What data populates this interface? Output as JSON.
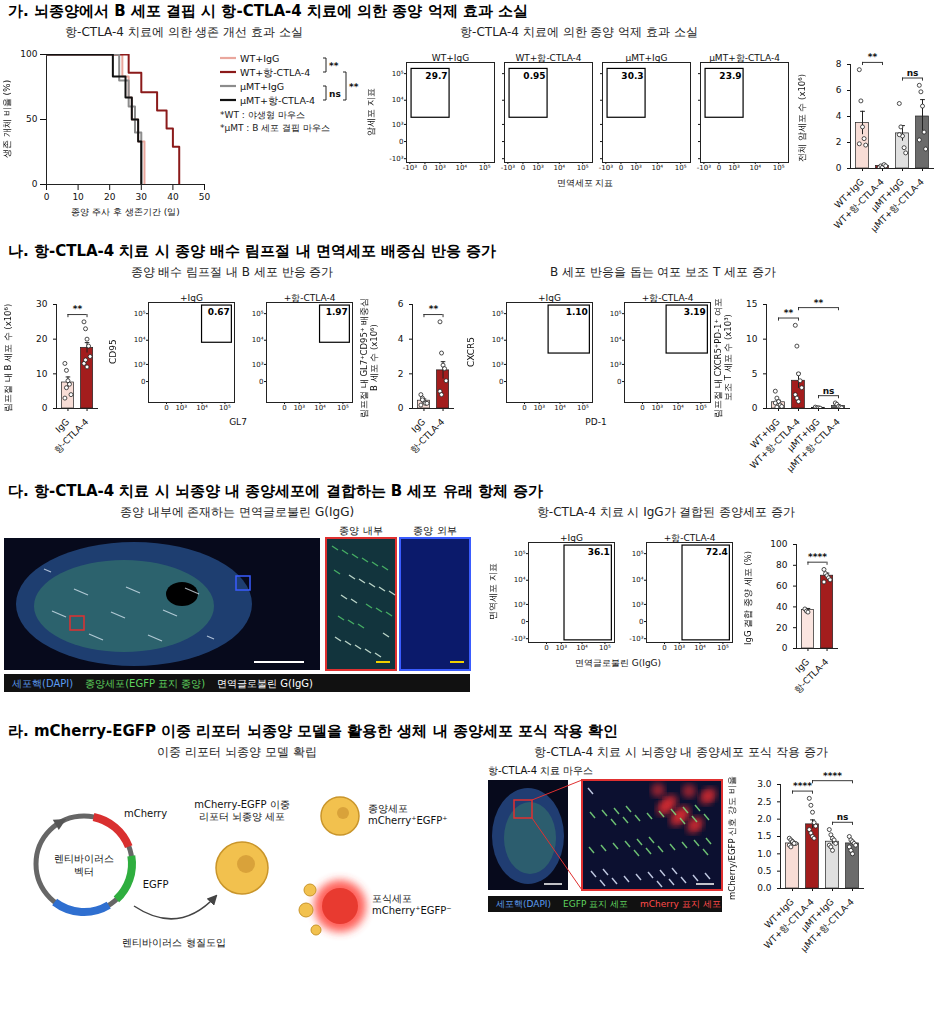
{
  "sections": [
    {
      "heading": "가. 뇌종양에서 B 세포 결핍 시 항-CTLA-4 치료에 의한 종양 억제 효과 소실",
      "subtitles": [
        "항-CTLA-4 치료에 의한 생존 개선 효과 소실",
        "항-CTLA-4 치료에 의한 종양 억제 효과 소실"
      ]
    },
    {
      "heading": "나. 항-CTLA-4 치료 시 종양 배수 림프절 내 면역세포 배중심 반응 증가",
      "subtitles": [
        "종양 배수 림프절 내 B 세포 반응 증가",
        "B 세포 반응을 돕는 여포 보조 T 세포 증가"
      ]
    },
    {
      "heading": "다. 항-CTLA-4 치료 시 뇌종양 내 종양세포에 결합하는 B 세포 유래 항체 증가",
      "subtitles": [
        "종양 내부에 존재하는 면역글로불린 G(IgG)",
        "항-CTLA-4 치료 시 IgG가 결합된 종양세포 증가"
      ]
    },
    {
      "heading": "라. mCherry-EGFP 이중 리포터 뇌종양 모델을 활용한 생체 내 종양세포 포식 작용 확인",
      "subtitles": [
        "이중 리포터 뇌종양 모델 확립",
        "항-CTLA-4 치료 시 뇌종양 내 종양세포 포식 작용 증가"
      ]
    }
  ],
  "chart_data": [
    {
      "type": "step",
      "xlabel": "종양 주사 후 생존기간 (일)",
      "ylabel": "생존 개체 비율 (%)",
      "xlim": [
        0,
        50
      ],
      "xticks": [
        0,
        10,
        20,
        30,
        40,
        50
      ],
      "ylim": [
        0,
        100
      ],
      "yticks": [
        0,
        50,
        100
      ],
      "legend": "right",
      "series": [
        {
          "name": "WT+IgG",
          "color": "#eaa79d",
          "x": [
            0,
            24,
            26,
            27,
            29,
            31
          ],
          "values": [
            100,
            83,
            67,
            50,
            33,
            0
          ]
        },
        {
          "name": "WT+항-CTLA-4",
          "color": "#8b1a1a",
          "x": [
            0,
            26,
            30,
            35,
            38,
            40,
            42
          ],
          "values": [
            100,
            86,
            71,
            57,
            43,
            29,
            0
          ]
        },
        {
          "name": "μMT+IgG",
          "color": "#8c8c8c",
          "x": [
            0,
            23,
            26,
            28,
            30
          ],
          "values": [
            100,
            80,
            60,
            40,
            0
          ]
        },
        {
          "name": "μMT+항-CTLA-4",
          "color": "#111111",
          "x": [
            0,
            21,
            25,
            27,
            29,
            30
          ],
          "values": [
            100,
            83,
            67,
            50,
            33,
            0
          ]
        }
      ],
      "comparisons": [
        {
          "from": 0,
          "to": 1,
          "label": "**"
        },
        {
          "from": 1,
          "to": 3,
          "label": "**"
        },
        {
          "from": 2,
          "to": 3,
          "label": "ns"
        }
      ],
      "notes": [
        "*WT : 야생형 마우스",
        "*μMT : B 세포 결핍 마우스"
      ]
    },
    {
      "type": "flow",
      "xlabel": "면역세포 지표",
      "ylabel": "암세포 지표",
      "log": true,
      "categories": [
        "WT+IgG",
        "WT+항-CTLA-4",
        "μMT+IgG",
        "μMT+항-CTLA-4"
      ],
      "values": [
        29.7,
        0.95,
        30.3,
        23.9
      ],
      "gate": {
        "x": [
          -800,
          3000
        ],
        "y": [
          2000,
          150000
        ]
      },
      "xlim": [
        -1500,
        260000
      ],
      "ylim": [
        -1500,
        260000
      ],
      "xticks": [
        {
          "value": -1000,
          "label": "-10³"
        },
        0,
        {
          "value": 1000,
          "label": "10³"
        },
        {
          "value": 10000,
          "label": "10⁴"
        },
        {
          "value": 100000,
          "label": "10⁵"
        }
      ],
      "yticks": [
        {
          "value": -1000,
          "label": "-10³"
        },
        0,
        {
          "value": 1000,
          "label": "10³"
        },
        {
          "value": 10000,
          "label": "10⁴"
        },
        {
          "value": 100000,
          "label": "10⁵"
        }
      ]
    },
    {
      "type": "bar",
      "ylabel": "전체 암세포 수 (x10⁶)",
      "categories": [
        "WT+IgG",
        "WT+항-CTLA-4",
        "μMT+IgG",
        "μMT+항-CTLA-4"
      ],
      "values": [
        3.5,
        0.2,
        2.7,
        4.0
      ],
      "error": [
        0.9,
        0.1,
        0.6,
        1.3
      ],
      "points": [
        [
          7.6,
          5.2,
          3.2,
          2.3,
          1.8,
          1.9
        ],
        [
          0.1,
          0.2,
          0.1,
          0.3,
          0.2
        ],
        [
          5.0,
          3.2,
          2.5,
          1.6,
          1.2,
          2.6
        ],
        [
          6.4,
          5.9,
          4.8,
          2.8,
          1.5,
          2.2
        ]
      ],
      "colors": [
        "#f8ddd6",
        "#a31d1d",
        "#e0e0e0",
        "#6b6b6b"
      ],
      "ylim": [
        0,
        8
      ],
      "yticks": [
        0,
        2,
        4,
        6,
        8
      ],
      "comparisons": [
        {
          "from": 0,
          "to": 1,
          "label": "**"
        },
        {
          "from": 2,
          "to": 3,
          "label": "ns"
        }
      ]
    },
    {
      "type": "bar",
      "ylabel": "림프절 내 B 세포 수 (x10⁶)",
      "categories": [
        "IgG",
        "항-CTLA-4"
      ],
      "values": [
        7.5,
        17.5
      ],
      "error": [
        1.6,
        1.5
      ],
      "points": [
        [
          13,
          11,
          8,
          7,
          4,
          3,
          6
        ],
        [
          25,
          23,
          20,
          18,
          15,
          13,
          14,
          12
        ]
      ],
      "colors": [
        "#f8ddd6",
        "#a31d1d"
      ],
      "ylim": [
        0,
        30
      ],
      "yticks": [
        0,
        10,
        20,
        30
      ],
      "comparisons": [
        {
          "from": 0,
          "to": 1,
          "label": "**"
        }
      ]
    },
    {
      "type": "flow",
      "xlabel": "GL7",
      "ylabel": "CD95",
      "log": true,
      "categories": [
        "+IgG",
        "+항-CTLA-4"
      ],
      "values": [
        0.67,
        1.97
      ],
      "gate": {
        "x": [
          10000,
          200000
        ],
        "y": [
          8000,
          200000
        ]
      },
      "xlim": [
        -1500,
        260000
      ],
      "ylim": [
        -1500,
        260000
      ],
      "xticks": [
        0,
        {
          "value": 1000,
          "label": "10³"
        },
        {
          "value": 10000,
          "label": "10⁴"
        },
        {
          "value": 100000,
          "label": "10⁵"
        }
      ],
      "yticks": [
        0,
        {
          "value": 1000,
          "label": "10³"
        },
        {
          "value": 10000,
          "label": "10⁴"
        },
        {
          "value": 100000,
          "label": "10⁵"
        }
      ]
    },
    {
      "type": "bar",
      "ylabel": "림프절 내 GL7⁺CD95⁺ 배중심 B 세포 수 (x10⁶)",
      "categories": [
        "IgG",
        "항-CTLA-4"
      ],
      "values": [
        0.45,
        2.2
      ],
      "error": [
        0.1,
        0.5
      ],
      "points": [
        [
          0.8,
          0.6,
          0.4,
          0.3,
          0.3,
          0.2,
          0.5
        ],
        [
          5.0,
          3.2,
          2.5,
          2.3,
          1.6,
          1.0,
          0.8
        ]
      ],
      "colors": [
        "#f8ddd6",
        "#a31d1d"
      ],
      "ylim": [
        0,
        6
      ],
      "yticks": [
        0,
        2,
        4,
        6
      ],
      "comparisons": [
        {
          "from": 0,
          "to": 1,
          "label": "**"
        }
      ]
    },
    {
      "type": "flow",
      "xlabel": "PD-1",
      "ylabel": "CXCR5",
      "log": true,
      "categories": [
        "+IgG",
        "+항-CTLA-4"
      ],
      "values": [
        1.1,
        3.19
      ],
      "value_labels": [
        "1.10",
        "3.19"
      ],
      "gate": {
        "x": [
          3000,
          200000
        ],
        "y": [
          3000,
          200000
        ]
      },
      "xlim": [
        -1500,
        260000
      ],
      "ylim": [
        -1500,
        260000
      ],
      "xticks": [
        0,
        {
          "value": 1000,
          "label": "10³"
        },
        {
          "value": 10000,
          "label": "10⁴"
        },
        {
          "value": 100000,
          "label": "10⁵"
        }
      ],
      "yticks": [
        0,
        {
          "value": 1000,
          "label": "10³"
        },
        {
          "value": 10000,
          "label": "10⁴"
        },
        {
          "value": 100000,
          "label": "10⁵"
        }
      ]
    },
    {
      "type": "bar",
      "ylabel": "림프절 내 CXCR5⁺PD-1⁺ 여포 보조 T 세포 수 (x10³)",
      "categories": [
        "WT+IgG",
        "WT+항-CTLA-4",
        "μMT+IgG",
        "μMT+항-CTLA-4"
      ],
      "values": [
        0.9,
        4.0,
        0.1,
        0.35
      ],
      "error": [
        0.3,
        1.1,
        0.05,
        0.15
      ],
      "points": [
        [
          2.5,
          1.5,
          1.0,
          0.5,
          0.3,
          0.8,
          0.2
        ],
        [
          12,
          9,
          5,
          4,
          3,
          2,
          1.5,
          1.0
        ],
        [
          0.2,
          0.1,
          0.1,
          0.05
        ],
        [
          0.8,
          0.6,
          0.3,
          0.2,
          0.1
        ]
      ],
      "colors": [
        "#f8ddd6",
        "#a31d1d",
        "#e0e0e0",
        "#6b6b6b"
      ],
      "ylim": [
        0,
        15
      ],
      "yticks": [
        0,
        5,
        10,
        15
      ],
      "comparisons": [
        {
          "from": 0,
          "to": 1,
          "label": "**"
        },
        {
          "from": 1,
          "to": 3,
          "label": "**"
        },
        {
          "from": 2,
          "to": 3,
          "label": "ns"
        }
      ]
    },
    {
      "type": "flow",
      "xlabel": "면역글로불린 G(IgG)",
      "ylabel": "면역세포 지표",
      "log": true,
      "categories": [
        "+IgG",
        "+항-CTLA-4"
      ],
      "values": [
        36.1,
        72.4
      ],
      "gate": {
        "x": [
          1500,
          200000
        ],
        "y": [
          -1200,
          200000
        ]
      },
      "xlim": [
        -1500,
        260000
      ],
      "ylim": [
        -1500,
        260000
      ],
      "xticks": [
        0,
        {
          "value": 1000,
          "label": "10³"
        },
        {
          "value": 10000,
          "label": "10⁴"
        },
        {
          "value": 100000,
          "label": "10⁵"
        }
      ],
      "yticks": [
        {
          "value": -1000,
          "label": "-10³"
        },
        0,
        {
          "value": 1000,
          "label": "10³"
        },
        {
          "value": 10000,
          "label": "10⁴"
        },
        {
          "value": 100000,
          "label": "10⁵"
        }
      ]
    },
    {
      "type": "bar",
      "ylabel": "IgG 결합 종양 세포 (%)",
      "categories": [
        "IgG",
        "항-CTLA-4"
      ],
      "values": [
        37,
        70
      ],
      "error": [
        1.5,
        2.5
      ],
      "points": [
        [
          38,
          36,
          35
        ],
        [
          76,
          72,
          70,
          68,
          66,
          64
        ]
      ],
      "colors": [
        "#fbe5e0",
        "#a31d1d"
      ],
      "ylim": [
        0,
        100
      ],
      "yticks": [
        0,
        20,
        40,
        60,
        80,
        100
      ],
      "comparisons": [
        {
          "from": 0,
          "to": 1,
          "label": "****"
        }
      ]
    },
    {
      "type": "bar",
      "ylabel": "mCherry/EGFP 신호 강도 비율",
      "categories": [
        "WT+IgG",
        "WT+항-CTLA-4",
        "μMT+IgG",
        "μMT+항-CTLA-4"
      ],
      "values": [
        1.3,
        1.85,
        1.35,
        1.3
      ],
      "error": [
        0.04,
        0.13,
        0.07,
        0.06
      ],
      "points": [
        [
          1.45,
          1.4,
          1.35,
          1.3,
          1.3,
          1.25,
          1.2,
          1.35,
          1.3
        ],
        [
          2.6,
          2.4,
          2.2,
          1.9,
          1.8,
          1.7,
          1.6,
          1.5,
          1.45
        ],
        [
          1.7,
          1.55,
          1.45,
          1.4,
          1.3,
          1.25,
          1.2,
          1.1
        ],
        [
          1.5,
          1.4,
          1.35,
          1.3,
          1.25,
          1.2,
          1.1,
          1.0
        ]
      ],
      "colors": [
        "#f8ddd6",
        "#a31d1d",
        "#e0e0e0",
        "#6b6b6b"
      ],
      "ylim": [
        0,
        3
      ],
      "yticks": [
        {
          "value": 0,
          "label": "0.0"
        },
        0.5,
        {
          "value": 1,
          "label": "1.0"
        },
        1.5,
        {
          "value": 2,
          "label": "2.0"
        },
        2.5,
        {
          "value": 3,
          "label": "3.0"
        }
      ],
      "comparisons": [
        {
          "from": 0,
          "to": 1,
          "label": "****"
        },
        {
          "from": 1,
          "to": 3,
          "label": "****"
        },
        {
          "from": 2,
          "to": 3,
          "label": "ns"
        }
      ]
    }
  ],
  "images": [
    {
      "insets": [
        "종양 내부",
        "종양 외부"
      ],
      "legend": [
        {
          "text": "세포핵(DAPI)",
          "color": "#5b9bf0"
        },
        {
          "text": "종양세포(EGFP 표지 종양)",
          "color": "#5fd35f"
        },
        {
          "text": "면역글로불린 G(IgG)",
          "color": "#ffffff"
        }
      ]
    },
    {
      "title": "항-CTLA-4 치료 마우스",
      "legend": [
        {
          "text": "세포핵(DAPI)",
          "color": "#5b9bf0"
        },
        {
          "text": "EGFP 표지 세포",
          "color": "#5fd35f"
        },
        {
          "text": "mCherry 표지 세포",
          "color": "#ff4a4a"
        }
      ]
    }
  ],
  "diagram": {
    "vector_labels": [
      "mCherry",
      "EGFP"
    ],
    "vector": "렌티바이러스 벡터",
    "transduction": "렌티바이러스 형질도입",
    "dual_cell": "mCherry-EGFP 이중 리포터 뇌종양 세포",
    "tumor_cell": "종양세포 mCherry⁺EGFP⁺",
    "phagocyte": "포식세포 mCherry⁺EGFP⁻"
  }
}
